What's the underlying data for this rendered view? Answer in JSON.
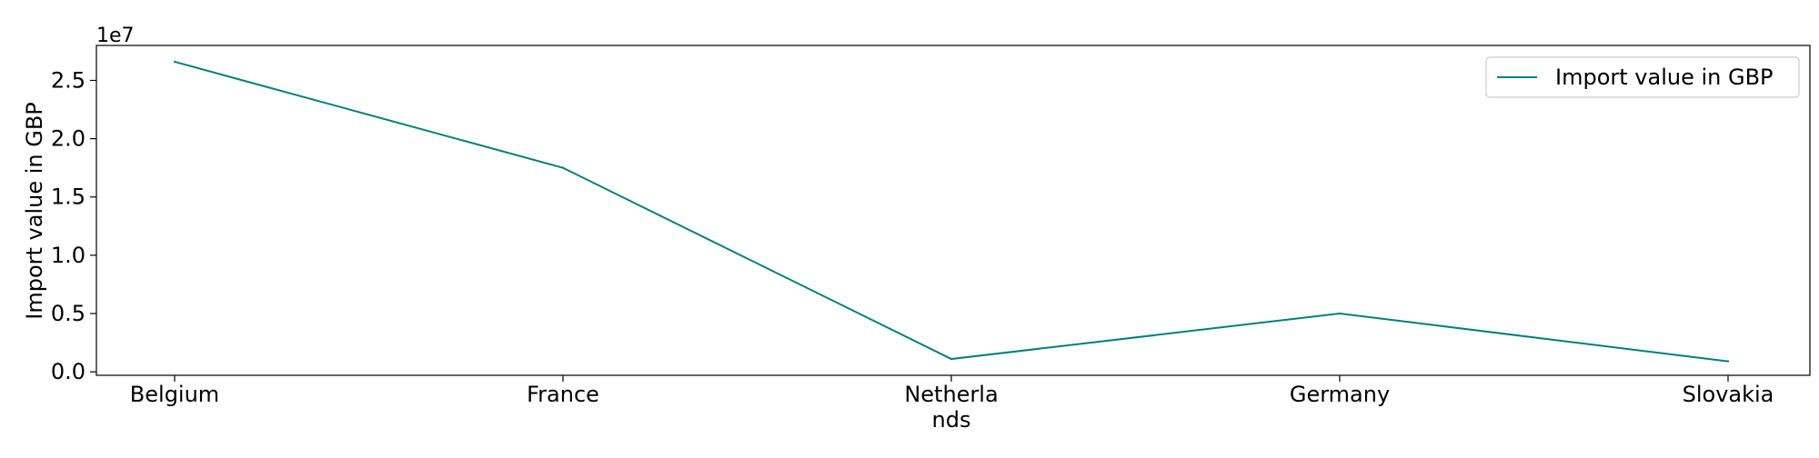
{
  "chart_data": {
    "type": "line",
    "title": "",
    "xlabel": "",
    "ylabel": "Import value in GBP",
    "y_offset_label": "1e7",
    "categories": [
      "Belgium",
      "France",
      "Netherlands",
      "Germany",
      "Slovakia"
    ],
    "category_labels": [
      [
        "Belgium"
      ],
      [
        "France"
      ],
      [
        "Netherla",
        "nds"
      ],
      [
        "Germany"
      ],
      [
        "Slovakia"
      ]
    ],
    "series": [
      {
        "name": "Import value in GBP",
        "color": "#008080",
        "values": [
          26600000,
          17500000,
          1100000,
          5000000,
          900000
        ]
      }
    ],
    "yticks": [
      0,
      5000000,
      10000000,
      15000000,
      20000000,
      25000000
    ],
    "ytick_labels": [
      "0.0",
      "0.5",
      "1.0",
      "1.5",
      "2.0",
      "2.5"
    ],
    "ylim": [
      -300000,
      28000000
    ],
    "grid": false,
    "legend_position": "top-right"
  }
}
